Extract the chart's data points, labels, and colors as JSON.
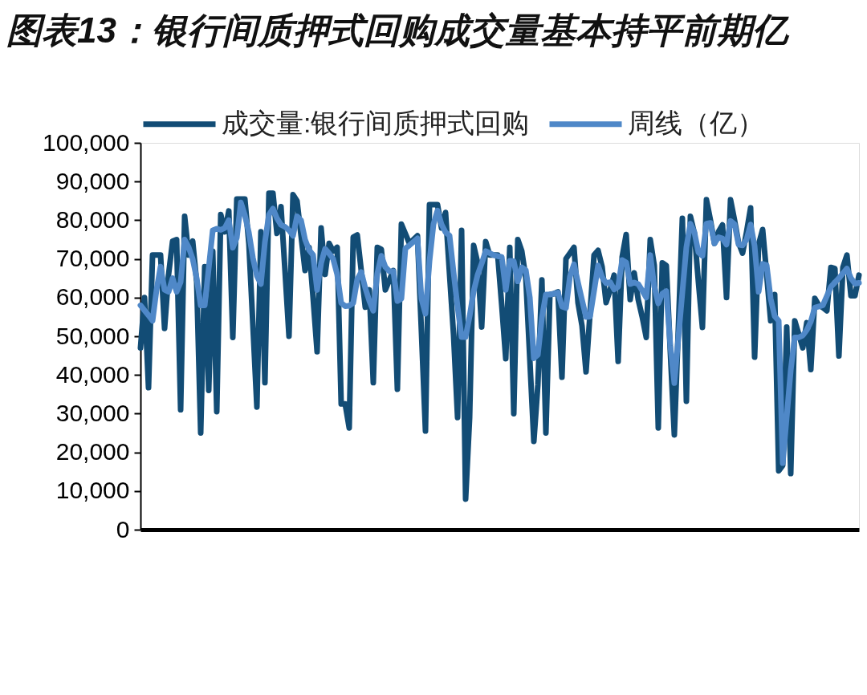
{
  "chart_data": {
    "type": "line",
    "title": "图表13：银行间质押式回购成交量基本持平前期亿",
    "categories": [
      null,
      null,
      null,
      null,
      null,
      null,
      null,
      null,
      null,
      null,
      null,
      null,
      null,
      null,
      null,
      null,
      null,
      null,
      null,
      null,
      null,
      null,
      null,
      null,
      null,
      null,
      null,
      null,
      null,
      null,
      null,
      null,
      null,
      null,
      null,
      null,
      null,
      null,
      null,
      null,
      null,
      null,
      null,
      null,
      null,
      null,
      null,
      null,
      null,
      null,
      null,
      null,
      null,
      null,
      null,
      null,
      null,
      null,
      null,
      null,
      null,
      null,
      null,
      null,
      null,
      null,
      null,
      null,
      null,
      null,
      null,
      null,
      null,
      null,
      null,
      null,
      null,
      null,
      null,
      null,
      null,
      null,
      null,
      null,
      null,
      null,
      null,
      null,
      null,
      null,
      null,
      null,
      null,
      null,
      null,
      null,
      null,
      null,
      null,
      null,
      null,
      null,
      null,
      null,
      null,
      null,
      null,
      null,
      null,
      null,
      null,
      null,
      null,
      null,
      null,
      null,
      null,
      null,
      null,
      null,
      null,
      null,
      null,
      null,
      null,
      null,
      null,
      null,
      null,
      null,
      null,
      null,
      null,
      null,
      null,
      null,
      null,
      null,
      null,
      null,
      null,
      null,
      null,
      null,
      null,
      null,
      null,
      null,
      null,
      null,
      null,
      null,
      null,
      null,
      null,
      null,
      null,
      null,
      null,
      null,
      null,
      null,
      null,
      null,
      null,
      null,
      null,
      null,
      null,
      null,
      null,
      null,
      null,
      null,
      null,
      null,
      null,
      null,
      null,
      null
    ],
    "series": [
      {
        "name": "成交量:银行间质押式回购",
        "color": "#124c75",
        "values": [
          47000,
          60000,
          36700,
          71000,
          71000,
          71000,
          52000,
          66000,
          74600,
          75000,
          31000,
          81000,
          71000,
          74600,
          64000,
          25000,
          68000,
          36000,
          72000,
          30500,
          81500,
          77000,
          82400,
          49700,
          85500,
          85500,
          85500,
          74000,
          53000,
          31700,
          77000,
          38000,
          87000,
          87000,
          76600,
          83500,
          67000,
          50000,
          86600,
          85000,
          76000,
          67000,
          73000,
          60000,
          46000,
          78000,
          66000,
          74000,
          72000,
          73000,
          32500,
          32500,
          26300,
          75600,
          76200,
          67000,
          57500,
          62000,
          38000,
          73000,
          72500,
          62000,
          64500,
          67000,
          36300,
          79000,
          76500,
          74000,
          75000,
          76000,
          51000,
          25500,
          84000,
          84000,
          84000,
          78000,
          82000,
          66000,
          50300,
          29000,
          77400,
          7900,
          29000,
          73500,
          69000,
          52400,
          74500,
          71000,
          71000,
          71000,
          58000,
          44200,
          73000,
          30000,
          75000,
          72000,
          65000,
          44000,
          22800,
          37400,
          64600,
          25000,
          60800,
          61000,
          61500,
          39400,
          70000,
          71500,
          73000,
          58700,
          52700,
          40800,
          56000,
          71000,
          72200,
          68000,
          58700,
          62000,
          65800,
          43500,
          70500,
          76300,
          59500,
          66400,
          59500,
          55000,
          49700,
          75000,
          68300,
          26300,
          69000,
          68300,
          46000,
          24500,
          52000,
          80500,
          33200,
          81000,
          76600,
          64000,
          52300,
          85300,
          80000,
          74000,
          77000,
          78800,
          60000,
          85300,
          80000,
          74200,
          71500,
          77000,
          83200,
          44600,
          73700,
          77600,
          66000,
          54000,
          60800,
          15200,
          16600,
          52400,
          14500,
          54000,
          50500,
          47000,
          53500,
          41400,
          59800,
          58000,
          57400,
          56600,
          67800,
          67500,
          44900,
          67800,
          71000,
          60500,
          60500,
          65800
        ]
      },
      {
        "name": "周线（亿）",
        "color": "#4f88c8",
        "values": [
          58000,
          56700,
          55400,
          54000,
          62000,
          68000,
          62000,
          61500,
          65000,
          61500,
          64000,
          75000,
          73000,
          70000,
          65000,
          58000,
          58000,
          67600,
          77400,
          77800,
          77500,
          78000,
          80000,
          72900,
          75500,
          84600,
          81300,
          76800,
          70300,
          65600,
          63500,
          74400,
          81400,
          83000,
          80500,
          78800,
          78300,
          77400,
          76000,
          81000,
          80000,
          75000,
          72300,
          71000,
          62000,
          68900,
          72600,
          71400,
          70000,
          66000,
          58600,
          57800,
          57900,
          58600,
          64700,
          66600,
          62500,
          59200,
          56600,
          66200,
          70800,
          67900,
          66800,
          66800,
          59100,
          59700,
          72700,
          73500,
          74400,
          75300,
          59700,
          55800,
          69400,
          79000,
          82500,
          78900,
          76900,
          76000,
          66500,
          57600,
          49800,
          49800,
          55200,
          61600,
          65900,
          68800,
          72000,
          71500,
          71000,
          70700,
          70500,
          62000,
          69500,
          69400,
          64200,
          67800,
          67100,
          60000,
          44300,
          45200,
          54800,
          60800,
          60800,
          61000,
          61300,
          57700,
          57300,
          65500,
          68600,
          63900,
          59400,
          55000,
          55100,
          61700,
          68300,
          65300,
          63700,
          64000,
          62100,
          62800,
          69700,
          69100,
          63500,
          63900,
          63500,
          61800,
          60000,
          71000,
          62900,
          58500,
          61000,
          61700,
          47600,
          37900,
          49600,
          61300,
          73000,
          79100,
          76900,
          71700,
          70800,
          79100,
          79300,
          74000,
          75600,
          75300,
          73700,
          79800,
          79000,
          73700,
          73500,
          75000,
          78900,
          73300,
          61500,
          68700,
          68400,
          59700,
          55200,
          54000,
          17200,
          29200,
          41200,
          49700,
          49700,
          50200,
          51600,
          53800,
          57400,
          57700,
          58000,
          60400,
          62800,
          63900,
          65000,
          66300,
          67500,
          65000,
          63600,
          63800
        ]
      }
    ],
    "ylim": [
      0,
      100000
    ],
    "yticks": [
      {
        "value": 0,
        "label": "0"
      },
      {
        "value": 10000,
        "label": "10,000"
      },
      {
        "value": 20000,
        "label": "20,000"
      },
      {
        "value": 30000,
        "label": "30,000"
      },
      {
        "value": 40000,
        "label": "40,000"
      },
      {
        "value": 50000,
        "label": "50,000"
      },
      {
        "value": 60000,
        "label": "60,000"
      },
      {
        "value": 70000,
        "label": "70,000"
      },
      {
        "value": 80000,
        "label": "80,000"
      },
      {
        "value": 90000,
        "label": "90,000"
      },
      {
        "value": 100000,
        "label": "100,000"
      }
    ],
    "tick_labels": "y",
    "grid": false,
    "legend": "top",
    "line_style": "solid"
  }
}
